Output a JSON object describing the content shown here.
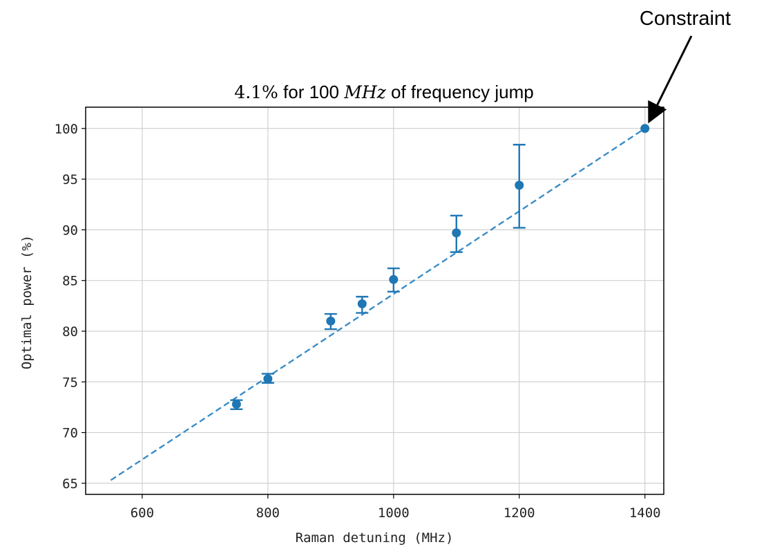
{
  "chart_data": {
    "type": "scatter",
    "title": {
      "value": "4.1%",
      "middle": " for 100 ",
      "unit": "MHz",
      "end": " of frequency jump"
    },
    "xlabel": "Raman detuning (MHz)",
    "ylabel": "Optimal power (%)",
    "xlim": [
      510,
      1430
    ],
    "ylim": [
      63.9,
      102.1
    ],
    "xticks": [
      600,
      800,
      1000,
      1200,
      1400
    ],
    "yticks": [
      65,
      70,
      75,
      80,
      85,
      90,
      95,
      100
    ],
    "grid": true,
    "points": [
      {
        "x": 750,
        "y": 72.8,
        "err_low": 72.3,
        "err_high": 73.2
      },
      {
        "x": 800,
        "y": 75.3,
        "err_low": 74.9,
        "err_high": 75.8
      },
      {
        "x": 900,
        "y": 81.0,
        "err_low": 80.2,
        "err_high": 81.7
      },
      {
        "x": 950,
        "y": 82.7,
        "err_low": 81.8,
        "err_high": 83.4
      },
      {
        "x": 1000,
        "y": 85.1,
        "err_low": 83.9,
        "err_high": 86.2
      },
      {
        "x": 1100,
        "y": 89.7,
        "err_low": 87.8,
        "err_high": 91.4
      },
      {
        "x": 1200,
        "y": 94.4,
        "err_low": 90.2,
        "err_high": 98.4
      },
      {
        "x": 1400,
        "y": 100.0
      }
    ],
    "fit_line": {
      "style": "dashed",
      "x": [
        550,
        1400
      ],
      "y": [
        65.3,
        100.0
      ]
    },
    "annotation": {
      "text": "Constraint",
      "target": {
        "x": 1400,
        "y": 100.0
      }
    },
    "colors": {
      "points": "#1f77b4",
      "fit": "#3a8cc6",
      "grid": "#d0d0d0",
      "axes": "#000000"
    }
  }
}
